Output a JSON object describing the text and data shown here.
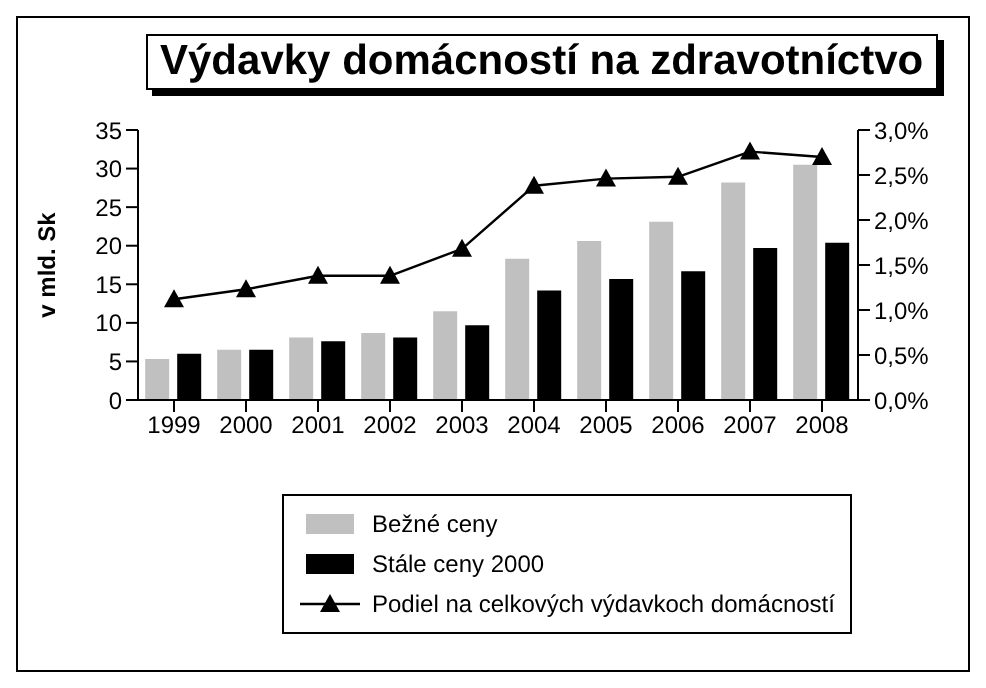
{
  "chart_data": {
    "type": "bar",
    "title": "Výdavky domácností na zdravotníctvo",
    "ylabel": "v mld. Sk",
    "categories": [
      "1999",
      "2000",
      "2001",
      "2002",
      "2003",
      "2004",
      "2005",
      "2006",
      "2007",
      "2008"
    ],
    "series": [
      {
        "name": "Bežné ceny",
        "color": "#c0c0c0",
        "values": [
          5.3,
          6.5,
          8.1,
          8.7,
          11.5,
          18.3,
          20.6,
          23.1,
          28.2,
          30.5
        ]
      },
      {
        "name": "Stále ceny 2000",
        "color": "#000000",
        "values": [
          6.0,
          6.5,
          7.6,
          8.1,
          9.7,
          14.2,
          15.7,
          16.7,
          19.7,
          20.4
        ]
      },
      {
        "name": "Podiel na celkových výdavkoch domácností",
        "type": "line",
        "axis": "y2",
        "color": "#000000",
        "values": [
          1.12,
          1.23,
          1.38,
          1.38,
          1.68,
          2.38,
          2.46,
          2.48,
          2.76,
          2.7
        ]
      }
    ],
    "ylim": [
      0,
      35
    ],
    "yticks": [
      0,
      5,
      10,
      15,
      20,
      25,
      30,
      35
    ],
    "y2lim": [
      0,
      3
    ],
    "y2ticks": [
      {
        "value": 0,
        "label": "0,0%"
      },
      {
        "value": 0.5,
        "label": "0,5%"
      },
      {
        "value": 1,
        "label": "1,0%"
      },
      {
        "value": 1.5,
        "label": "1,5%"
      },
      {
        "value": 2,
        "label": "2,0%"
      },
      {
        "value": 2.5,
        "label": "2,5%"
      },
      {
        "value": 3,
        "label": "3,0%"
      }
    ],
    "marker": "triangle",
    "grid": false,
    "legend": "bottom"
  }
}
